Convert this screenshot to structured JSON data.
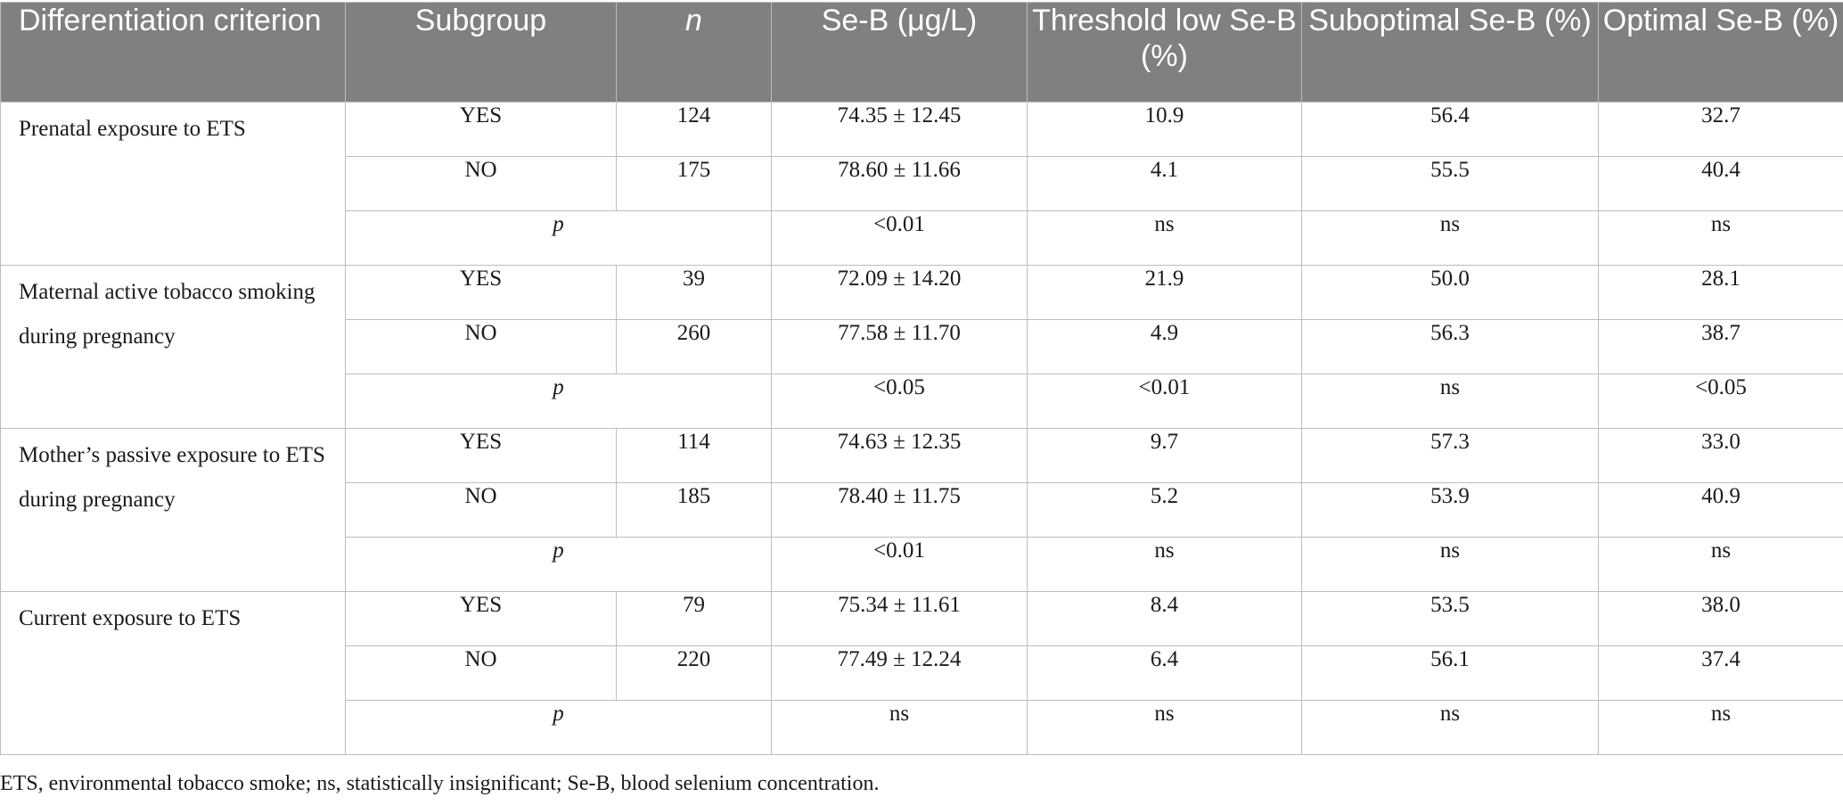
{
  "headers": {
    "criterion": "Differentiation criterion",
    "subgroup": "Subgroup",
    "n": "n",
    "seb": "Se-B (μg/L)",
    "threshold_low": "Threshold low Se-B (%)",
    "suboptimal": "Suboptimal Se-B (%)",
    "optimal": "Optimal Se-B (%)"
  },
  "groups": [
    {
      "criterion": "Prenatal exposure to ETS",
      "rows": [
        {
          "subgroup": "YES",
          "n": "124",
          "seb": "74.35 ± 12.45",
          "threshold_low": "10.9",
          "suboptimal": "56.4",
          "optimal": "32.7"
        },
        {
          "subgroup": "NO",
          "n": "175",
          "seb": "78.60 ± 11.66",
          "threshold_low": "4.1",
          "suboptimal": "55.5",
          "optimal": "40.4"
        }
      ],
      "p": {
        "label": "p",
        "seb": "<0.01",
        "threshold_low": "ns",
        "suboptimal": "ns",
        "optimal": "ns"
      }
    },
    {
      "criterion": "Maternal active tobacco smoking during pregnancy",
      "rows": [
        {
          "subgroup": "YES",
          "n": "39",
          "seb": "72.09 ± 14.20",
          "threshold_low": "21.9",
          "suboptimal": "50.0",
          "optimal": "28.1"
        },
        {
          "subgroup": "NO",
          "n": "260",
          "seb": "77.58 ± 11.70",
          "threshold_low": "4.9",
          "suboptimal": "56.3",
          "optimal": "38.7"
        }
      ],
      "p": {
        "label": "p",
        "seb": "<0.05",
        "threshold_low": "<0.01",
        "suboptimal": "ns",
        "optimal": "<0.05"
      }
    },
    {
      "criterion": "Mother’s passive exposure to ETS during pregnancy",
      "rows": [
        {
          "subgroup": "YES",
          "n": "114",
          "seb": "74.63 ± 12.35",
          "threshold_low": "9.7",
          "suboptimal": "57.3",
          "optimal": "33.0"
        },
        {
          "subgroup": "NO",
          "n": "185",
          "seb": "78.40 ± 11.75",
          "threshold_low": "5.2",
          "suboptimal": "53.9",
          "optimal": "40.9"
        }
      ],
      "p": {
        "label": "p",
        "seb": "<0.01",
        "threshold_low": "ns",
        "suboptimal": "ns",
        "optimal": "ns"
      }
    },
    {
      "criterion": "Current exposure to ETS",
      "rows": [
        {
          "subgroup": "YES",
          "n": "79",
          "seb": "75.34 ± 11.61",
          "threshold_low": "8.4",
          "suboptimal": "53.5",
          "optimal": "38.0"
        },
        {
          "subgroup": "NO",
          "n": "220",
          "seb": "77.49 ± 12.24",
          "threshold_low": "6.4",
          "suboptimal": "56.1",
          "optimal": "37.4"
        }
      ],
      "p": {
        "label": "p",
        "seb": "ns",
        "threshold_low": "ns",
        "suboptimal": "ns",
        "optimal": "ns"
      }
    }
  ],
  "footnote": "ETS, environmental tobacco smoke; ns, statistically insignificant; Se-B, blood selenium concentration."
}
